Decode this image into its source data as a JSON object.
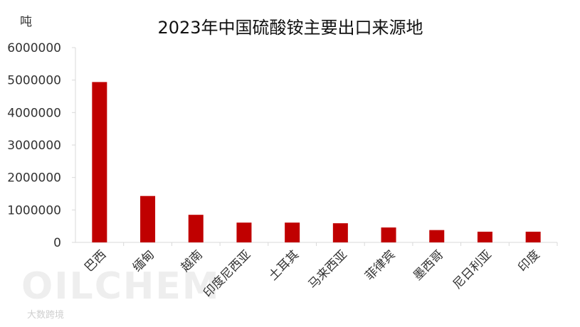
{
  "chart_data": {
    "type": "bar",
    "title": "2023年中国硫酸铵主要出口来源地",
    "ylabel": "吨",
    "xlabel": "",
    "categories": [
      "巴西",
      "缅甸",
      "越南",
      "印度尼西亚",
      "土耳其",
      "马来西亚",
      "菲律宾",
      "墨西哥",
      "尼日利亚",
      "印度"
    ],
    "values": [
      4940000,
      1430000,
      850000,
      610000,
      610000,
      590000,
      460000,
      380000,
      330000,
      330000
    ],
    "ylim": [
      0,
      6000000
    ],
    "yticks": [
      "0",
      "1000000",
      "2000000",
      "3000000",
      "4000000",
      "5000000",
      "6000000"
    ],
    "grid": false,
    "legend": "none",
    "bar_color": "#c00000"
  },
  "watermark": {
    "text": "OILCHEM",
    "sub": "大数跨境"
  }
}
